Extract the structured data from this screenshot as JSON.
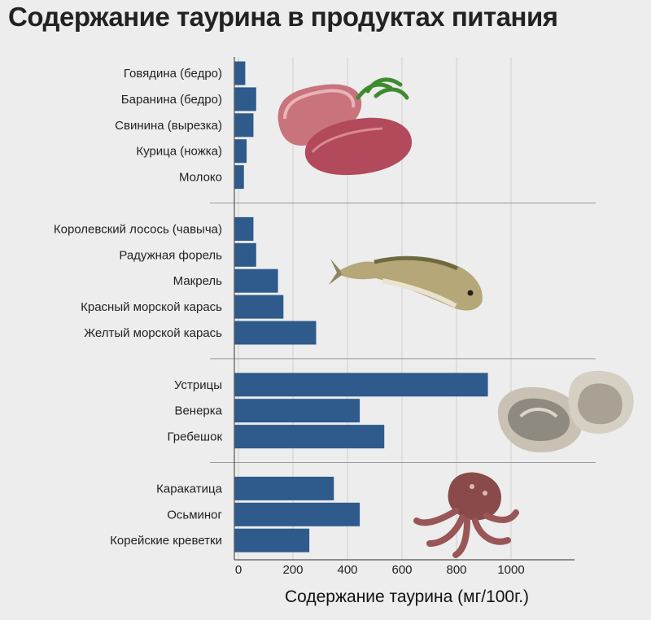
{
  "title": "Содержание таурина в продуктах питания",
  "chart_data": {
    "type": "bar",
    "orientation": "horizontal",
    "title": "Содержание таурина в продуктах питания",
    "xlabel": "Содержание таурина (мг/100г.)",
    "ylabel": "",
    "xlim": [
      0,
      1200
    ],
    "xticks": [
      "0",
      "200",
      "400",
      "600",
      "800",
      "1000"
    ],
    "grid": true,
    "bar_color": "#2e5a8c",
    "groups": [
      {
        "icon": "meat-image",
        "categories": [
          "Говядина (бедро)",
          "Баранина (бедро)",
          "Свинина (вырезка)",
          "Курица (ножка)",
          "Молоко"
        ],
        "values": [
          40,
          80,
          70,
          45,
          35
        ]
      },
      {
        "icon": "fish-image",
        "categories": [
          "Королевский лосось (чавыча)",
          "Радужная форель",
          "Макрель",
          "Красный морской карась",
          "Желтый морской карась"
        ],
        "values": [
          70,
          80,
          160,
          180,
          300
        ]
      },
      {
        "icon": "oyster-image",
        "categories": [
          "Устрицы",
          "Венерка",
          "Гребешок"
        ],
        "values": [
          930,
          460,
          550
        ]
      },
      {
        "icon": "octopus-image",
        "categories": [
          "Каракатица",
          "Осьминог",
          "Корейские креветки"
        ],
        "values": [
          365,
          460,
          275
        ]
      }
    ]
  }
}
